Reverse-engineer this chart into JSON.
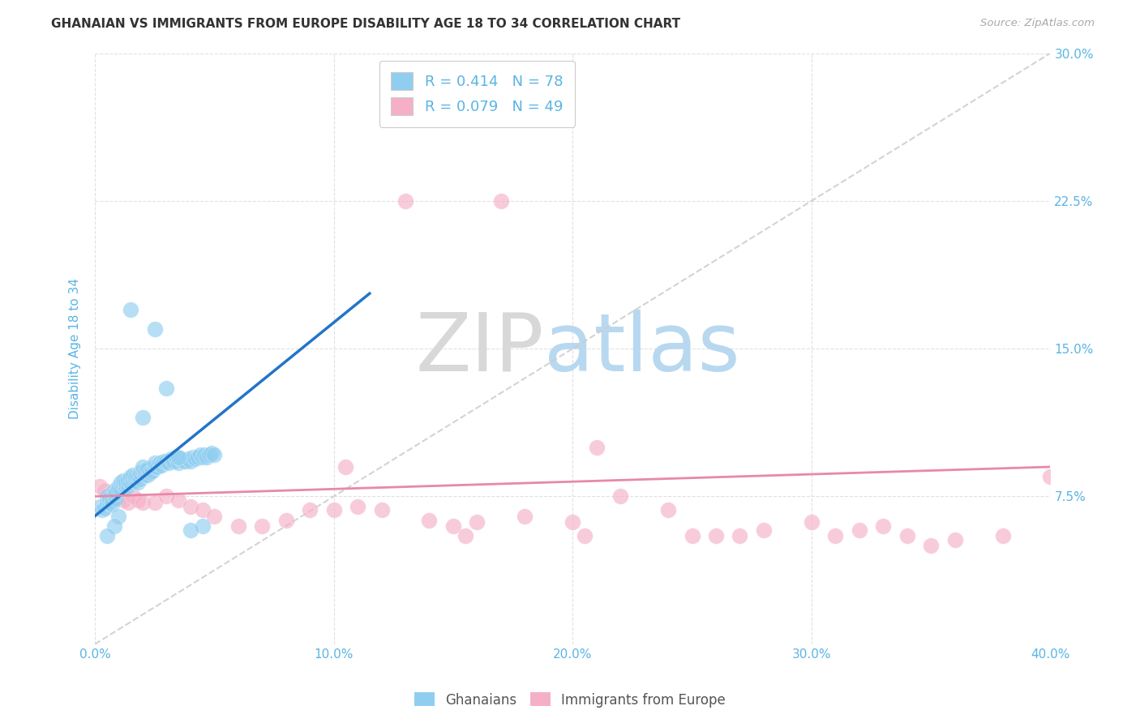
{
  "title": "GHANAIAN VS IMMIGRANTS FROM EUROPE DISABILITY AGE 18 TO 34 CORRELATION CHART",
  "source": "Source: ZipAtlas.com",
  "ylabel": "Disability Age 18 to 34",
  "xlim": [
    0.0,
    0.4
  ],
  "ylim": [
    0.0,
    0.3
  ],
  "xticks": [
    0.0,
    0.1,
    0.2,
    0.3,
    0.4
  ],
  "xtick_labels": [
    "0.0%",
    "10.0%",
    "20.0%",
    "30.0%",
    "40.0%"
  ],
  "yticks": [
    0.075,
    0.15,
    0.225,
    0.3
  ],
  "ytick_labels": [
    "7.5%",
    "15.0%",
    "22.5%",
    "30.0%"
  ],
  "blue_R": 0.414,
  "blue_N": 78,
  "pink_R": 0.079,
  "pink_N": 49,
  "blue_color": "#90cef0",
  "pink_color": "#f5b0c8",
  "blue_line_color": "#2275c8",
  "pink_line_color": "#e888a8",
  "diagonal_color": "#cccccc",
  "watermark_zip": "ZIP",
  "watermark_atlas": "atlas",
  "watermark_zip_color": "#d8d8d8",
  "watermark_atlas_color": "#b8d8f0",
  "background_color": "#ffffff",
  "grid_color": "#dddddd",
  "title_color": "#333333",
  "axis_label_color": "#5ab4e5",
  "tick_label_color": "#5ab4e5",
  "legend_label1": "Ghanaians",
  "legend_label2": "Immigrants from Europe",
  "blue_line_x0": 0.0,
  "blue_line_y0": 0.065,
  "blue_line_x1": 0.115,
  "blue_line_y1": 0.178,
  "pink_line_x0": 0.0,
  "pink_line_y0": 0.075,
  "pink_line_x1": 0.4,
  "pink_line_y1": 0.09,
  "blue_x": [
    0.002,
    0.003,
    0.004,
    0.005,
    0.005,
    0.006,
    0.006,
    0.007,
    0.007,
    0.008,
    0.008,
    0.009,
    0.009,
    0.01,
    0.01,
    0.011,
    0.011,
    0.012,
    0.012,
    0.013,
    0.013,
    0.014,
    0.014,
    0.015,
    0.015,
    0.016,
    0.016,
    0.017,
    0.017,
    0.018,
    0.018,
    0.019,
    0.019,
    0.02,
    0.02,
    0.021,
    0.021,
    0.022,
    0.022,
    0.023,
    0.024,
    0.025,
    0.025,
    0.026,
    0.027,
    0.028,
    0.029,
    0.03,
    0.031,
    0.032,
    0.033,
    0.034,
    0.035,
    0.036,
    0.037,
    0.038,
    0.039,
    0.04,
    0.041,
    0.042,
    0.043,
    0.044,
    0.045,
    0.046,
    0.047,
    0.048,
    0.049,
    0.05,
    0.02,
    0.03,
    0.025,
    0.015,
    0.035,
    0.01,
    0.008,
    0.045,
    0.04,
    0.005
  ],
  "blue_y": [
    0.07,
    0.068,
    0.069,
    0.075,
    0.072,
    0.072,
    0.074,
    0.073,
    0.071,
    0.078,
    0.076,
    0.074,
    0.077,
    0.08,
    0.079,
    0.079,
    0.082,
    0.081,
    0.083,
    0.08,
    0.082,
    0.08,
    0.083,
    0.082,
    0.085,
    0.083,
    0.086,
    0.083,
    0.085,
    0.082,
    0.085,
    0.084,
    0.087,
    0.088,
    0.09,
    0.086,
    0.088,
    0.086,
    0.089,
    0.087,
    0.088,
    0.09,
    0.092,
    0.09,
    0.092,
    0.091,
    0.093,
    0.093,
    0.092,
    0.094,
    0.093,
    0.095,
    0.092,
    0.094,
    0.093,
    0.093,
    0.094,
    0.093,
    0.095,
    0.094,
    0.095,
    0.096,
    0.095,
    0.096,
    0.095,
    0.096,
    0.097,
    0.096,
    0.115,
    0.13,
    0.16,
    0.17,
    0.095,
    0.065,
    0.06,
    0.06,
    0.058,
    0.055
  ],
  "pink_x": [
    0.002,
    0.004,
    0.006,
    0.008,
    0.01,
    0.012,
    0.014,
    0.016,
    0.018,
    0.02,
    0.025,
    0.03,
    0.035,
    0.04,
    0.045,
    0.05,
    0.06,
    0.07,
    0.08,
    0.09,
    0.1,
    0.11,
    0.12,
    0.14,
    0.15,
    0.16,
    0.18,
    0.2,
    0.22,
    0.24,
    0.25,
    0.28,
    0.3,
    0.32,
    0.34,
    0.36,
    0.38,
    0.4,
    0.13,
    0.17,
    0.21,
    0.26,
    0.31,
    0.35,
    0.105,
    0.155,
    0.205,
    0.27,
    0.33
  ],
  "pink_y": [
    0.08,
    0.078,
    0.076,
    0.074,
    0.074,
    0.073,
    0.072,
    0.075,
    0.073,
    0.072,
    0.072,
    0.075,
    0.073,
    0.07,
    0.068,
    0.065,
    0.06,
    0.06,
    0.063,
    0.068,
    0.068,
    0.07,
    0.068,
    0.063,
    0.06,
    0.062,
    0.065,
    0.062,
    0.075,
    0.068,
    0.055,
    0.058,
    0.062,
    0.058,
    0.055,
    0.053,
    0.055,
    0.085,
    0.225,
    0.225,
    0.1,
    0.055,
    0.055,
    0.05,
    0.09,
    0.055,
    0.055,
    0.055,
    0.06
  ]
}
